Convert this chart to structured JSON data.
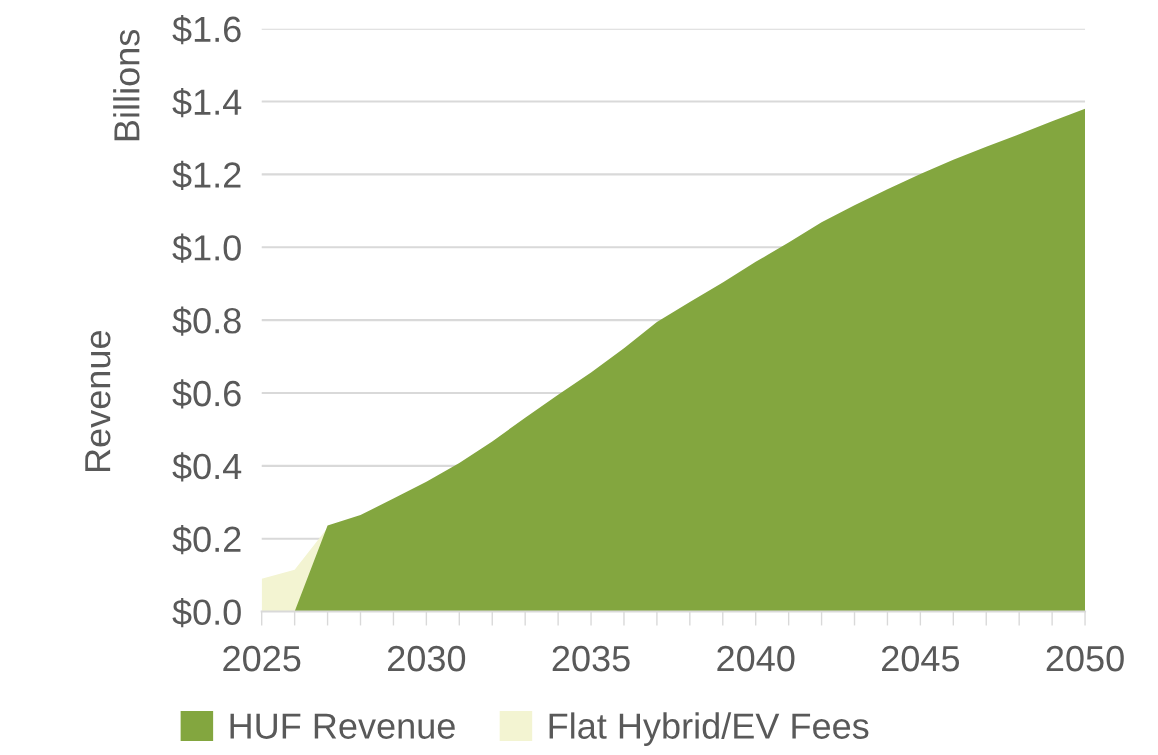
{
  "chart_data": {
    "type": "area",
    "ylabel": "Revenue",
    "annotations": [
      "Billions"
    ],
    "x": [
      2025,
      2026,
      2027,
      2028,
      2029,
      2030,
      2031,
      2032,
      2033,
      2034,
      2035,
      2036,
      2037,
      2038,
      2039,
      2040,
      2041,
      2042,
      2043,
      2044,
      2045,
      2046,
      2047,
      2048,
      2049,
      2050
    ],
    "series": [
      {
        "name": "HUF Revenue",
        "color": "#83a63f",
        "values": [
          null,
          0,
          0.236,
          0.265,
          0.31,
          0.356,
          0.408,
          0.467,
          0.532,
          0.595,
          0.656,
          0.723,
          0.795,
          0.85,
          0.903,
          0.96,
          1.013,
          1.069,
          1.115,
          1.159,
          1.201,
          1.24,
          1.276,
          1.31,
          1.346,
          1.38
        ]
      },
      {
        "name": "Flat Hybrid/EV Fees",
        "color": "#f3f4d2",
        "values": [
          0.09,
          0.115,
          0.23,
          null,
          null,
          null,
          null,
          null,
          null,
          null,
          null,
          null,
          null,
          null,
          null,
          null,
          null,
          null,
          null,
          null,
          null,
          null,
          null,
          null,
          null,
          null
        ]
      }
    ],
    "xlim": [
      2025,
      2050
    ],
    "xticks": [
      2025,
      {
        "value": 2026,
        "label": null
      },
      {
        "value": 2027,
        "label": null
      },
      {
        "value": 2028,
        "label": null
      },
      {
        "value": 2029,
        "label": null
      },
      2030,
      {
        "value": 2031,
        "label": null
      },
      {
        "value": 2032,
        "label": null
      },
      {
        "value": 2033,
        "label": null
      },
      {
        "value": 2034,
        "label": null
      },
      2035,
      {
        "value": 2036,
        "label": null
      },
      {
        "value": 2037,
        "label": null
      },
      {
        "value": 2038,
        "label": null
      },
      {
        "value": 2039,
        "label": null
      },
      2040,
      {
        "value": 2041,
        "label": null
      },
      {
        "value": 2042,
        "label": null
      },
      {
        "value": 2043,
        "label": null
      },
      {
        "value": 2044,
        "label": null
      },
      2045,
      {
        "value": 2046,
        "label": null
      },
      {
        "value": 2047,
        "label": null
      },
      {
        "value": 2048,
        "label": null
      },
      {
        "value": 2049,
        "label": null
      },
      2050
    ],
    "ylim": [
      0,
      1.6
    ],
    "yticks": [
      {
        "value": 0,
        "label": "$0.0"
      },
      {
        "value": 0.2,
        "label": "$0.2"
      },
      {
        "value": 0.4,
        "label": "$0.4"
      },
      {
        "value": 0.6,
        "label": "$0.6"
      },
      {
        "value": 0.8,
        "label": "$0.8"
      },
      {
        "value": 1.0,
        "label": "$1.0"
      },
      {
        "value": 1.2,
        "label": "$1.2"
      },
      {
        "value": 1.4,
        "label": "$1.4"
      },
      {
        "value": 1.6,
        "label": "$1.6"
      }
    ],
    "grid": "y",
    "legend": "bottom"
  }
}
